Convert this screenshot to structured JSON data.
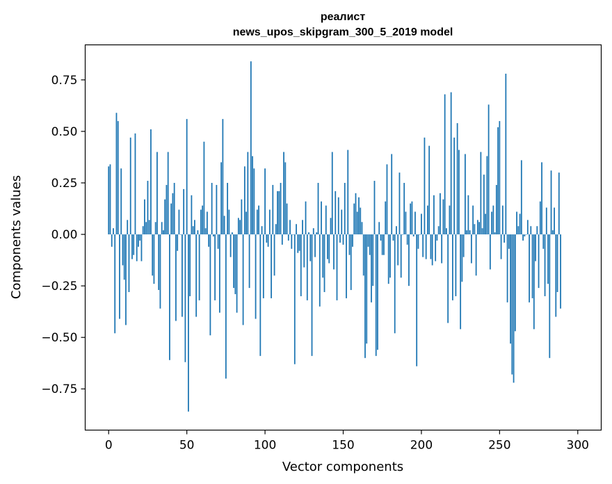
{
  "chart_data": {
    "type": "bar",
    "title_line1": "реалист",
    "title_line2": "news_upos_skipgram_300_5_2019 model",
    "xlabel": "Vector components",
    "ylabel": "Components values",
    "xlim": [
      -15,
      315
    ],
    "ylim": [
      -0.95,
      0.92
    ],
    "xticks": [
      0,
      50,
      100,
      150,
      200,
      250,
      300
    ],
    "xtick_labels": [
      "0",
      "50",
      "100",
      "150",
      "200",
      "250",
      "300"
    ],
    "yticks": [
      -0.75,
      -0.5,
      -0.25,
      0.0,
      0.25,
      0.5,
      0.75
    ],
    "ytick_labels": [
      "−0.75",
      "−0.50",
      "−0.25",
      "0.00",
      "0.25",
      "0.50",
      "0.75"
    ],
    "bar_color": "#1f77b4",
    "values": [
      0.33,
      0.34,
      -0.06,
      0.03,
      -0.48,
      0.59,
      0.55,
      -0.41,
      0.32,
      -0.15,
      -0.22,
      -0.44,
      0.07,
      -0.28,
      0.47,
      -0.12,
      -0.1,
      0.49,
      -0.13,
      -0.06,
      -0.03,
      -0.13,
      0.04,
      0.17,
      0.06,
      0.26,
      0.07,
      0.51,
      -0.2,
      -0.24,
      0.06,
      0.4,
      -0.27,
      -0.36,
      0.06,
      0.02,
      0.17,
      0.24,
      0.4,
      -0.61,
      0.15,
      0.2,
      0.25,
      -0.42,
      -0.08,
      0.12,
      0.0,
      -0.4,
      0.22,
      -0.62,
      0.56,
      -0.86,
      -0.3,
      0.19,
      0.04,
      0.07,
      -0.4,
      0.02,
      -0.32,
      0.12,
      0.14,
      0.45,
      0.03,
      0.11,
      -0.06,
      -0.49,
      0.25,
      -0.01,
      -0.32,
      0.24,
      -0.07,
      -0.38,
      0.35,
      0.56,
      0.09,
      -0.7,
      0.25,
      0.12,
      -0.11,
      0.01,
      -0.26,
      -0.29,
      -0.38,
      0.08,
      0.07,
      0.17,
      -0.44,
      0.33,
      0.11,
      0.4,
      -0.26,
      0.84,
      0.38,
      0.32,
      -0.41,
      0.12,
      0.14,
      -0.59,
      0.04,
      -0.31,
      0.32,
      -0.04,
      -0.06,
      0.12,
      -0.31,
      0.24,
      -0.2,
      0.05,
      0.21,
      0.21,
      0.25,
      -0.05,
      0.4,
      0.35,
      0.15,
      -0.03,
      0.07,
      -0.07,
      0.0,
      -0.63,
      0.05,
      -0.09,
      -0.08,
      -0.3,
      0.07,
      -0.16,
      0.16,
      -0.32,
      0.01,
      -0.13,
      -0.59,
      0.03,
      -0.11,
      0.01,
      0.25,
      -0.35,
      0.16,
      -0.21,
      -0.28,
      0.14,
      -0.12,
      -0.14,
      0.08,
      0.4,
      -0.17,
      0.21,
      -0.32,
      0.18,
      -0.04,
      0.12,
      -0.05,
      0.25,
      -0.31,
      0.41,
      -0.1,
      -0.27,
      -0.06,
      0.15,
      0.2,
      0.11,
      0.18,
      0.13,
      0.06,
      -0.2,
      -0.6,
      -0.53,
      -0.06,
      -0.1,
      -0.33,
      -0.25,
      0.26,
      -0.59,
      -0.56,
      0.06,
      -0.03,
      -0.1,
      -0.1,
      0.16,
      0.34,
      -0.24,
      -0.21,
      0.39,
      -0.03,
      -0.48,
      0.04,
      -0.15,
      0.3,
      -0.21,
      0.0,
      0.25,
      0.11,
      -0.05,
      -0.25,
      0.15,
      0.16,
      -0.01,
      0.11,
      -0.64,
      -0.07,
      0.0,
      0.1,
      -0.11,
      0.47,
      -0.12,
      0.14,
      0.43,
      -0.12,
      -0.15,
      0.19,
      -0.13,
      -0.03,
      0.04,
      0.2,
      -0.14,
      0.17,
      0.68,
      0.03,
      -0.43,
      0.14,
      0.69,
      -0.32,
      0.47,
      -0.3,
      0.54,
      0.41,
      -0.46,
      -0.23,
      -0.11,
      0.39,
      0.02,
      0.19,
      0.02,
      -0.14,
      0.14,
      0.05,
      -0.2,
      0.07,
      0.06,
      0.4,
      0.03,
      0.29,
      0.1,
      0.38,
      0.63,
      -0.17,
      0.11,
      0.14,
      0.01,
      0.24,
      0.52,
      0.55,
      -0.12,
      0.14,
      -0.04,
      0.78,
      -0.33,
      -0.07,
      -0.53,
      -0.68,
      -0.72,
      -0.47,
      0.11,
      0.04,
      0.1,
      0.36,
      -0.03,
      -0.01,
      0.0,
      0.07,
      -0.33,
      0.04,
      -0.31,
      -0.46,
      -0.13,
      0.04,
      -0.26,
      0.16,
      0.35,
      -0.07,
      -0.3,
      0.13,
      -0.24,
      -0.6,
      0.31,
      0.02,
      0.13,
      -0.4,
      -0.28,
      0.3,
      -0.36
    ]
  }
}
